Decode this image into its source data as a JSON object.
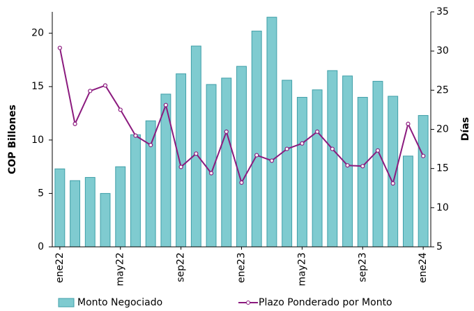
{
  "chart_data": {
    "type": "bar_line",
    "categories": [
      "ene22",
      null,
      null,
      null,
      "may22",
      null,
      null,
      null,
      "sep22",
      null,
      null,
      null,
      "ene23",
      null,
      null,
      null,
      "may23",
      null,
      null,
      null,
      "sep23",
      null,
      null,
      null,
      "ene24"
    ],
    "series": [
      {
        "name": "Monto Negociado",
        "color": "#7fcbd0",
        "values": [
          7.3,
          6.2,
          6.5,
          5.0,
          7.5,
          10.5,
          11.8,
          14.3,
          16.2,
          18.8,
          15.2,
          15.8,
          16.9,
          20.2,
          21.5,
          15.6,
          14.0,
          14.7,
          16.5,
          16.0,
          14.0,
          15.5,
          14.1,
          8.5,
          12.3
        ]
      },
      {
        "name": "Plazo Ponderado por Monto",
        "color": "#8b1a7e",
        "axis": "y2",
        "values": [
          30.4,
          20.7,
          24.9,
          25.6,
          22.5,
          19.2,
          18.0,
          23.1,
          15.2,
          16.9,
          14.4,
          19.7,
          13.2,
          16.7,
          16.0,
          17.5,
          18.2,
          19.7,
          17.5,
          15.4,
          15.3,
          17.3,
          13.1,
          20.7,
          16.6
        ]
      }
    ],
    "ylabel": "COP Billones",
    "y2label": "Días",
    "ylim": [
      0,
      22
    ],
    "yticks": [
      0,
      5,
      10,
      15,
      20
    ],
    "y2lim": [
      5,
      35
    ],
    "y2ticks": [
      5,
      10,
      15,
      20,
      25,
      30,
      35
    ]
  }
}
